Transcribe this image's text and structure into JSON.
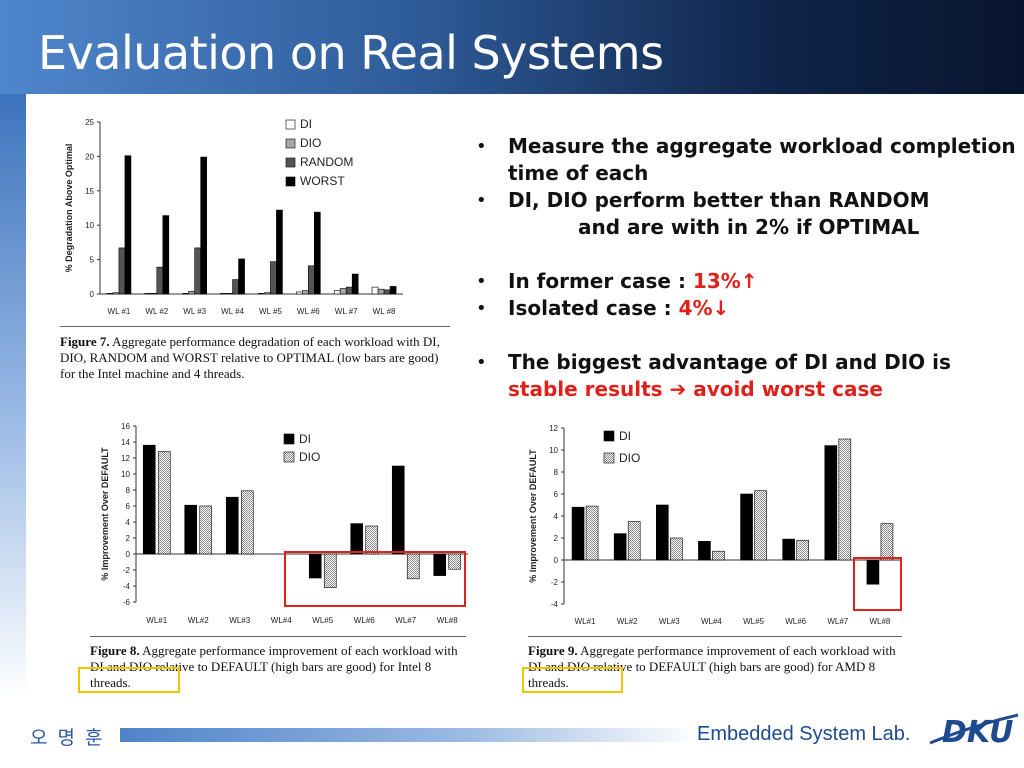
{
  "slide": {
    "title": "Evaluation on Real Systems",
    "footer_author": "오 명 훈",
    "footer_lab": "Embedded System Lab.",
    "logo_text": "DKU"
  },
  "bullets": [
    {
      "parts": [
        {
          "text": "Measure the aggregate workload completion time of each"
        }
      ]
    },
    {
      "parts": [
        {
          "text": "DI, DIO perform better than RANDOM"
        }
      ],
      "indent": "and are with in 2% if OPTIMAL"
    },
    {
      "gap": true,
      "parts": [
        {
          "text": "In former case : "
        },
        {
          "text": "13%↑",
          "red": true
        }
      ]
    },
    {
      "parts": [
        {
          "text": "Isolated case : "
        },
        {
          "text": "4%↓",
          "red": true
        }
      ]
    },
    {
      "gap": true,
      "parts": [
        {
          "text": "The biggest advantage of DI and DIO is "
        },
        {
          "text": "stable results ➔ avoid worst case",
          "red": true
        }
      ]
    }
  ],
  "captions": {
    "fig7_label": "Figure 7.",
    "fig7_text": "Aggregate performance degradation of each workload with DI, DIO, RANDOM and WORST relative to OPTIMAL (low bars are good) for the Intel machine and 4 threads.",
    "fig8_label": "Figure 8.",
    "fig8_text": "Aggregate performance improvement of each workload with DI and DIO relative to DEFAULT (high bars are good) for Intel 8 threads.",
    "fig9_label": "Figure 9.",
    "fig9_text": "Aggregate performance improvement of each workload with DI and DIO relative to DEFAULT (high bars are good) for AMD 8 threads."
  },
  "colors": {
    "highlight_red": "#e0201b",
    "highlight_yellow": "#f2c300",
    "bullet_red": "#e0201b",
    "bar_black": "#000000",
    "bar_gray": "#a8a8a8",
    "bar_white": "#ffffff"
  },
  "chart_data": [
    {
      "id": "fig7",
      "type": "bar",
      "categories": [
        "WL #1",
        "WL #2",
        "WL #3",
        "WL #4",
        "WL #5",
        "WL #6",
        "WL #7",
        "WL #8"
      ],
      "series": [
        {
          "name": "DI",
          "values": [
            0.1,
            0.1,
            0.1,
            0.1,
            0.1,
            0.3,
            0.5,
            1.0
          ],
          "fill": "white"
        },
        {
          "name": "DIO",
          "values": [
            0.2,
            0.1,
            0.4,
            0.1,
            0.2,
            0.5,
            0.8,
            0.7
          ],
          "fill": "gray"
        },
        {
          "name": "RANDOM",
          "values": [
            6.7,
            3.9,
            6.7,
            2.1,
            4.7,
            4.1,
            1.0,
            0.6
          ],
          "fill": "darkgray"
        },
        {
          "name": "WORST",
          "values": [
            20.1,
            11.4,
            19.9,
            5.1,
            12.2,
            11.9,
            2.9,
            1.1
          ],
          "fill": "black"
        }
      ],
      "ylabel": "% Degradation Above Optimal",
      "ylim": [
        0,
        25
      ],
      "yticks": [
        0,
        5,
        10,
        15,
        20,
        25
      ],
      "grid": false,
      "legend": "top-right"
    },
    {
      "id": "fig8",
      "type": "bar",
      "categories": [
        "WL#1",
        "WL#2",
        "WL#3",
        "WL#4",
        "WL#5",
        "WL#6",
        "WL#7",
        "WL#8"
      ],
      "series": [
        {
          "name": "DI",
          "values": [
            13.6,
            6.1,
            7.1,
            0,
            -3.0,
            3.8,
            11.0,
            -2.7
          ],
          "fill": "black"
        },
        {
          "name": "DIO",
          "values": [
            12.8,
            6.0,
            7.9,
            0,
            -4.2,
            3.5,
            -3.1,
            -1.9
          ],
          "fill": "hatch"
        }
      ],
      "ylabel": "% Improvement Over DEFAULT",
      "ylim": [
        -6,
        16
      ],
      "yticks": [
        -6,
        -4,
        -2,
        0,
        2,
        4,
        6,
        8,
        10,
        12,
        14,
        16
      ],
      "grid": false,
      "legend": "top-center"
    },
    {
      "id": "fig9",
      "type": "bar",
      "categories": [
        "WL#1",
        "WL#2",
        "WL#3",
        "WL#4",
        "WL#5",
        "WL#6",
        "WL#7",
        "WL#8"
      ],
      "series": [
        {
          "name": "DI",
          "values": [
            4.8,
            2.4,
            5.0,
            1.7,
            6.0,
            1.9,
            10.4,
            -2.2
          ],
          "fill": "black"
        },
        {
          "name": "DIO",
          "values": [
            4.9,
            3.5,
            2.0,
            0.8,
            6.3,
            1.8,
            11.0,
            3.3
          ],
          "fill": "hatch"
        }
      ],
      "ylabel": "% Improvement Over DEFAULT",
      "ylim": [
        -4,
        12
      ],
      "yticks": [
        -4,
        -2,
        0,
        2,
        4,
        6,
        8,
        10,
        12
      ],
      "grid": false,
      "legend": "top-left"
    }
  ]
}
